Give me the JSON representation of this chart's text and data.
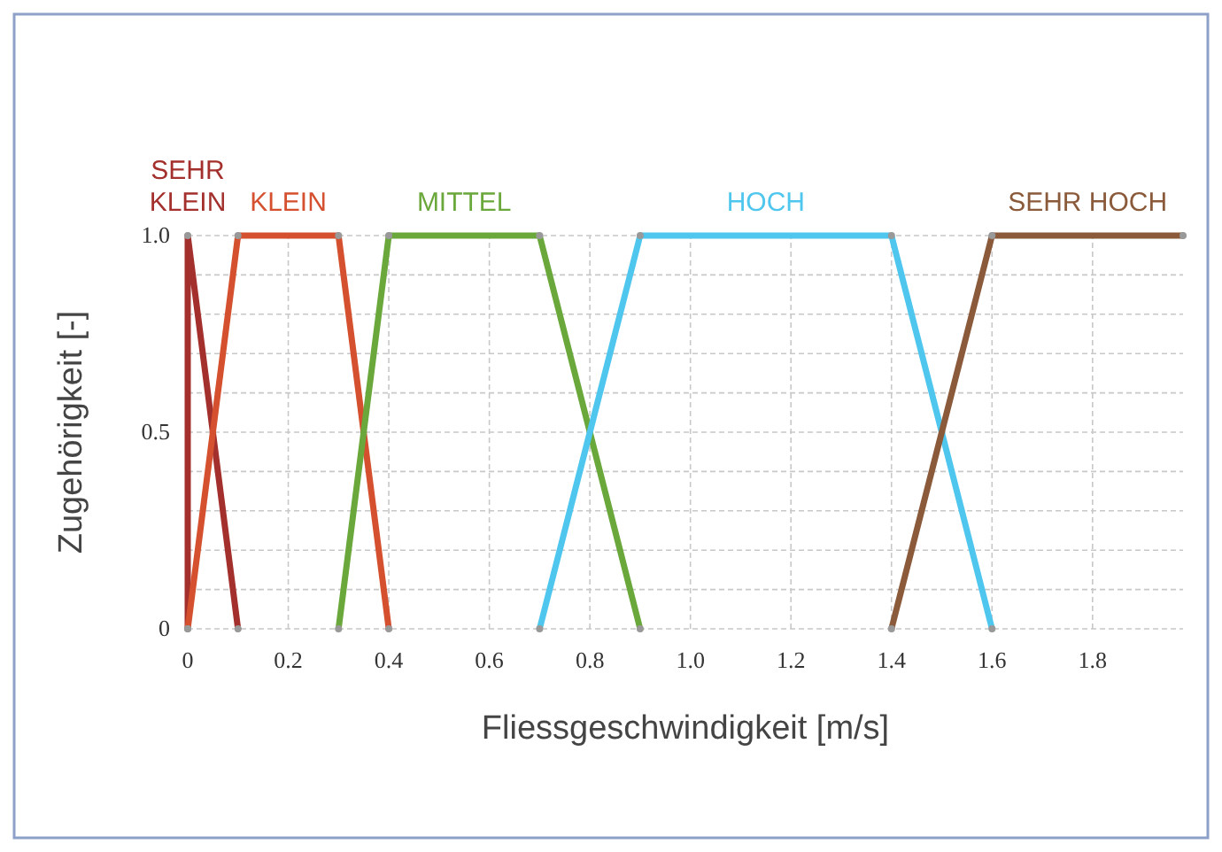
{
  "chart_data": {
    "type": "line",
    "xlabel": "Fliessgeschwindigkeit [m/s]",
    "ylabel": "Zugehörigkeit [-]",
    "xlim": [
      0,
      1.98
    ],
    "ylim": [
      0,
      1
    ],
    "xticks": [
      0,
      0.2,
      0.4,
      0.6,
      0.8,
      {
        "value": 1,
        "label": "1.0"
      },
      1.2,
      1.4,
      1.6,
      1.8
    ],
    "yticks": [
      0,
      {
        "value": 0.1,
        "label": null
      },
      {
        "value": 0.2,
        "label": null
      },
      {
        "value": 0.3,
        "label": null
      },
      {
        "value": 0.4,
        "label": null
      },
      0.5,
      {
        "value": 0.6,
        "label": null
      },
      {
        "value": 0.7,
        "label": null
      },
      {
        "value": 0.8,
        "label": null
      },
      {
        "value": 0.9,
        "label": null
      },
      {
        "value": 1,
        "label": "1.0"
      }
    ],
    "grid": true,
    "marker": "circle",
    "line_style": "solid",
    "series": [
      {
        "name": "SEHR KLEIN",
        "color": "#a3302c",
        "x": [
          0,
          0,
          0.1
        ],
        "values": [
          0,
          1,
          0
        ]
      },
      {
        "name": "KLEIN",
        "color": "#d4502e",
        "x": [
          0,
          0.1,
          0.3,
          0.4
        ],
        "values": [
          0,
          1,
          1,
          0
        ]
      },
      {
        "name": "MITTEL",
        "color": "#6aa83c",
        "x": [
          0.3,
          0.4,
          0.7,
          0.9
        ],
        "values": [
          0,
          1,
          1,
          0
        ]
      },
      {
        "name": "HOCH",
        "color": "#4fc6ee",
        "x": [
          0.7,
          0.9,
          1.4,
          1.6
        ],
        "values": [
          0,
          1,
          1,
          0
        ]
      },
      {
        "name": "SEHR HOCH",
        "color": "#8a5a3a",
        "x": [
          1.4,
          1.6,
          1.98
        ],
        "values": [
          0,
          1,
          1
        ]
      }
    ]
  }
}
